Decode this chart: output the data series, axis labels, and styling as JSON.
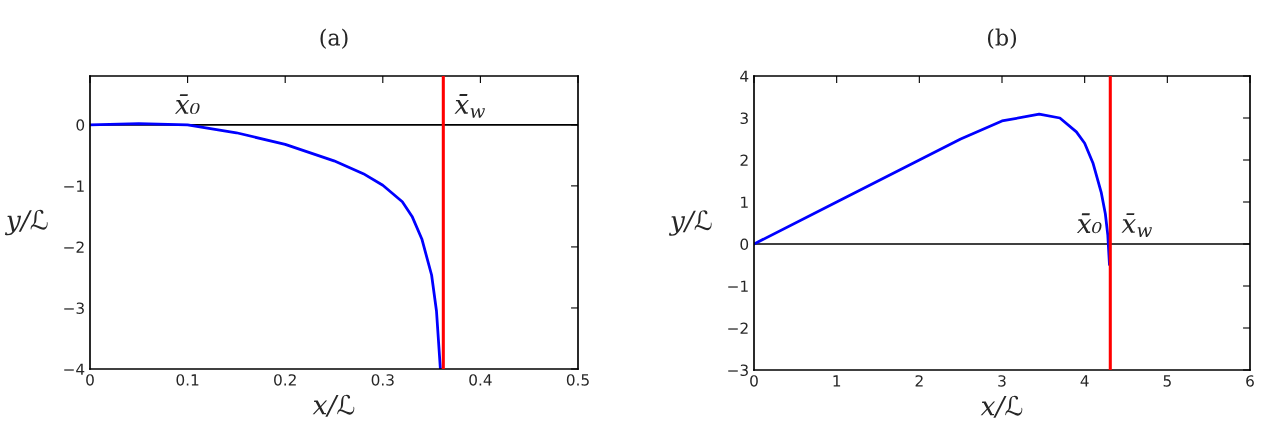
{
  "chart_data": [
    {
      "type": "line",
      "title": "(a)",
      "xlabel": "x/ℒ",
      "ylabel": "y/ℒ",
      "series": [
        {
          "color": "#0000ff",
          "x": [
            0,
            0.05,
            0.1,
            0.15,
            0.2,
            0.25,
            0.28,
            0.3,
            0.32,
            0.33,
            0.34,
            0.35,
            0.355,
            0.359
          ],
          "values": [
            0,
            0.02,
            0,
            -0.13,
            -0.32,
            -0.59,
            -0.8,
            -0.99,
            -1.26,
            -1.5,
            -1.87,
            -2.46,
            -3.05,
            -4
          ]
        }
      ],
      "xlim": [
        0,
        0.5
      ],
      "ylim": [
        -4,
        0.8
      ],
      "xticks": [
        0,
        0.1,
        0.2,
        0.3,
        0.4,
        0.5
      ],
      "yticks": [
        {
          "value": -4,
          "label": "−4"
        },
        {
          "value": -3,
          "label": "−3"
        },
        {
          "value": -2,
          "label": "−2"
        },
        {
          "value": -1,
          "label": "−1"
        },
        0
      ],
      "ref_lines": [
        {
          "axis": "y",
          "value": 0,
          "color": "#000000"
        },
        {
          "axis": "x",
          "value": 0.362,
          "label": "x̄$_{w}$",
          "color": "#ff0000"
        }
      ],
      "annotations": [
        {
          "text": "x̄₀",
          "x": 0.1,
          "y": 0
        }
      ],
      "grid": false,
      "legend": false
    },
    {
      "type": "line",
      "title": "(b)",
      "xlabel": "x/ℒ",
      "ylabel": "y/ℒ",
      "series": [
        {
          "color": "#0000ff",
          "x": [
            0,
            1,
            2,
            2.5,
            3,
            3.45,
            3.7,
            3.9,
            4.0,
            4.1,
            4.2,
            4.25,
            4.28,
            4.3
          ],
          "values": [
            0,
            1.0,
            2.0,
            2.5,
            2.93,
            3.09,
            3.0,
            2.67,
            2.4,
            1.93,
            1.23,
            0.72,
            0.21,
            -0.49
          ]
        }
      ],
      "xlim": [
        0,
        6
      ],
      "ylim": [
        -3,
        4
      ],
      "xticks": [
        0,
        1,
        2,
        3,
        4,
        5,
        6
      ],
      "yticks": [
        {
          "value": -3,
          "label": "−3"
        },
        {
          "value": -2,
          "label": "−2"
        },
        {
          "value": -1,
          "label": "−1"
        },
        0,
        1,
        2,
        3,
        4
      ],
      "ref_lines": [
        {
          "axis": "y",
          "value": 0,
          "color": "#000000"
        },
        {
          "axis": "x",
          "value": 4.31,
          "label": "x̄$_{w}$",
          "color": "#ff0000"
        }
      ],
      "annotations": [
        {
          "text": "x̄₀",
          "x": 4.28,
          "y": 0
        }
      ],
      "grid": false,
      "legend": false
    }
  ]
}
